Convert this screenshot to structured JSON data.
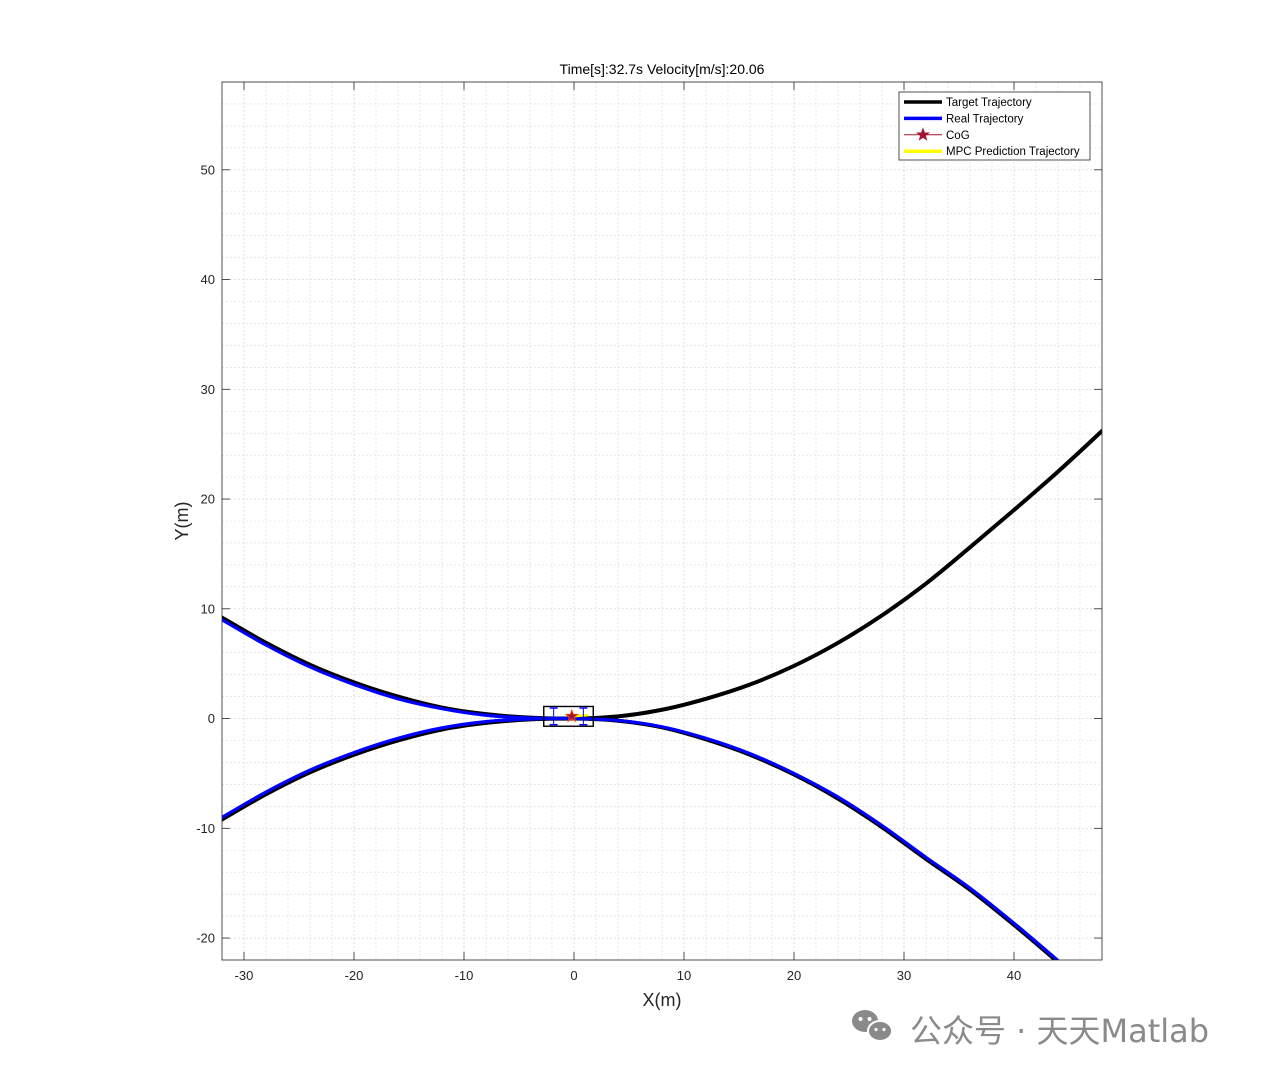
{
  "chart_data": {
    "type": "line",
    "title": "Time[s]:32.7s Velocity[m/s]:20.06",
    "xlabel": "X(m)",
    "ylabel": "Y(m)",
    "xlim": [
      -32,
      48
    ],
    "ylim": [
      -22,
      58
    ],
    "xticks": [
      -30,
      -20,
      -10,
      0,
      10,
      20,
      30,
      40
    ],
    "yticks": [
      -20,
      -10,
      0,
      10,
      20,
      30,
      40,
      50
    ],
    "xtick_labels": [
      "-30",
      "-20",
      "-10",
      "0",
      "10",
      "20",
      "30",
      "40"
    ],
    "ytick_labels": [
      "-20",
      "-10",
      "0",
      "10",
      "20",
      "30",
      "40",
      "50"
    ],
    "grid": true,
    "minor_grid": true,
    "legend_position": "top-right",
    "series": [
      {
        "name": "Target Trajectory",
        "color": "#000000",
        "style": "solid",
        "segments": [
          [
            [
              -32,
              9.2
            ],
            [
              -28,
              6.9
            ],
            [
              -24,
              4.9
            ],
            [
              -20,
              3.3
            ],
            [
              -16,
              2.0
            ],
            [
              -12,
              1.0
            ],
            [
              -8,
              0.4
            ],
            [
              -4,
              0.08
            ],
            [
              0,
              0
            ],
            [
              4,
              0.2
            ],
            [
              8,
              0.8
            ],
            [
              12,
              1.8
            ],
            [
              16,
              3.1
            ],
            [
              20,
              4.8
            ],
            [
              24,
              6.9
            ],
            [
              28,
              9.4
            ],
            [
              32,
              12.3
            ],
            [
              36,
              15.6
            ],
            [
              40,
              19.0
            ],
            [
              44,
              22.5
            ],
            [
              48,
              26.2
            ]
          ],
          [
            [
              -32,
              -9.2
            ],
            [
              -28,
              -6.9
            ],
            [
              -24,
              -4.9
            ],
            [
              -20,
              -3.3
            ],
            [
              -16,
              -2.0
            ],
            [
              -12,
              -1.0
            ],
            [
              -8,
              -0.4
            ],
            [
              -4,
              -0.08
            ],
            [
              0,
              0
            ],
            [
              4,
              -0.2
            ],
            [
              8,
              -0.8
            ],
            [
              12,
              -1.9
            ],
            [
              16,
              -3.3
            ],
            [
              20,
              -5.1
            ],
            [
              24,
              -7.3
            ],
            [
              28,
              -9.9
            ],
            [
              32,
              -12.8
            ],
            [
              36,
              -15.6
            ],
            [
              40,
              -18.8
            ],
            [
              44,
              -22.2
            ],
            [
              46.5,
              -24.4
            ]
          ]
        ]
      },
      {
        "name": "Real Trajectory",
        "color": "#0000ff",
        "style": "solid",
        "segments": [
          [
            [
              -32,
              9.0
            ],
            [
              -28,
              6.7
            ],
            [
              -24,
              4.7
            ],
            [
              -20,
              3.1
            ],
            [
              -16,
              1.8
            ],
            [
              -12,
              0.9
            ],
            [
              -8,
              0.3
            ],
            [
              -4,
              0.05
            ],
            [
              0,
              0
            ]
          ],
          [
            [
              -32,
              -9.0
            ],
            [
              -28,
              -6.7
            ],
            [
              -24,
              -4.7
            ],
            [
              -20,
              -3.1
            ],
            [
              -16,
              -1.8
            ],
            [
              -12,
              -0.85
            ],
            [
              -8,
              -0.28
            ],
            [
              -4,
              -0.04
            ],
            [
              0,
              0
            ],
            [
              4,
              -0.17
            ],
            [
              8,
              -0.75
            ],
            [
              12,
              -1.8
            ],
            [
              16,
              -3.2
            ],
            [
              20,
              -5.0
            ],
            [
              24,
              -7.15
            ],
            [
              28,
              -9.75
            ],
            [
              32,
              -12.65
            ],
            [
              36,
              -15.45
            ],
            [
              40,
              -18.65
            ],
            [
              44,
              -22.05
            ],
            [
              46.5,
              -24.25
            ]
          ]
        ]
      },
      {
        "name": "CoG",
        "color": "#a2142f",
        "marker": "pentagram",
        "points": [
          [
            -0.2,
            0.2
          ]
        ]
      },
      {
        "name": "MPC Prediction Trajectory",
        "color": "#ffff00",
        "style": "solid",
        "segments": [
          [
            [
              -0.2,
              0.2
            ],
            [
              0.5,
              0.25
            ],
            [
              1.2,
              0.3
            ]
          ]
        ]
      }
    ],
    "vehicle": {
      "center": [
        -0.5,
        0.2
      ],
      "length": 4.5,
      "width": 1.8,
      "body_color": "#000000",
      "wheel_color": "#0000ff"
    }
  },
  "watermark": {
    "text": "公众号 · 天天Matlab",
    "icon": "wechat-icon"
  }
}
